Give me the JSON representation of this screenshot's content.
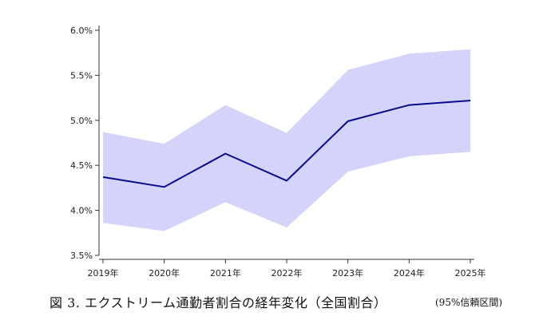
{
  "chart_data": {
    "type": "line",
    "x": [
      "2019年",
      "2020年",
      "2021年",
      "2022年",
      "2023年",
      "2024年",
      "2025年"
    ],
    "series": [
      {
        "values": [
          4.37,
          4.26,
          4.63,
          4.33,
          4.99,
          5.17,
          5.22
        ],
        "lower": [
          3.86,
          3.77,
          4.09,
          3.81,
          4.43,
          4.6,
          4.65
        ],
        "upper": [
          4.87,
          4.74,
          5.17,
          4.86,
          5.56,
          5.74,
          5.79
        ]
      }
    ],
    "yticks": [
      "3.5%",
      "4.0%",
      "4.5%",
      "5.0%",
      "5.5%",
      "6.0%"
    ],
    "ytick_values": [
      3.5,
      4.0,
      4.5,
      5.0,
      5.5,
      6.0
    ],
    "ylim": [
      3.5,
      6.0
    ],
    "grid": false,
    "colors": {
      "line": "#0a0a8c",
      "band": "#d4d4fa"
    }
  },
  "caption": {
    "title": "図 3.  エクストリーム通勤者割合の経年変化（全国割合）",
    "note": "(95%信頼区間)"
  }
}
